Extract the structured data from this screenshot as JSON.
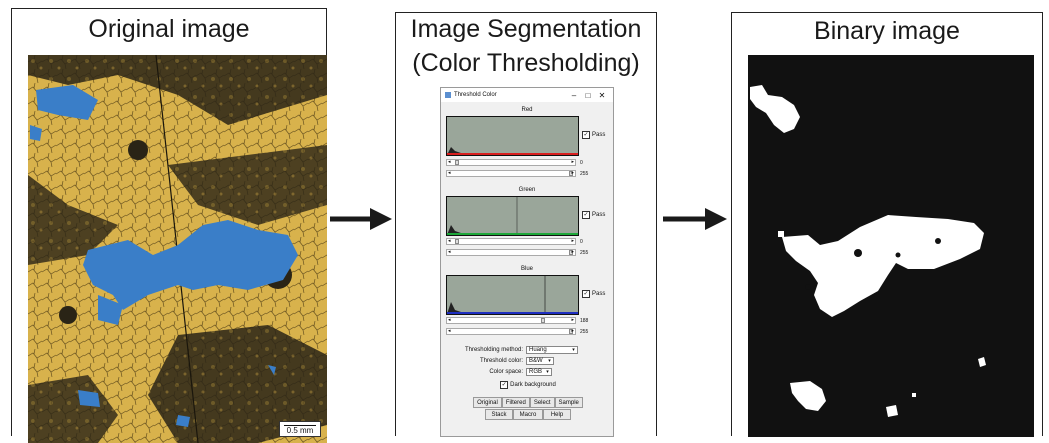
{
  "panels": {
    "original": {
      "title": "Original image",
      "scale_label": "0.5 mm"
    },
    "segmentation": {
      "title_line1": "Image Segmentation",
      "title_line2": "(Color Thresholding)"
    },
    "binary": {
      "title": "Binary image"
    }
  },
  "dialog": {
    "title": "Threshold Color",
    "window_buttons": [
      "–",
      "□",
      "✕"
    ],
    "channels": [
      {
        "name": "Red",
        "pass_label": "Pass",
        "min": "0",
        "max": "255",
        "color": "#d81e1e"
      },
      {
        "name": "Green",
        "pass_label": "Pass",
        "min": "0",
        "max": "255",
        "color": "#1ea83a"
      },
      {
        "name": "Blue",
        "pass_label": "Pass",
        "min": "188",
        "max": "255",
        "color": "#1e2ec0"
      }
    ],
    "method_label": "Thresholding method:",
    "method_value": "Huang",
    "color_label": "Threshold color:",
    "color_value": "B&W",
    "space_label": "Color space:",
    "space_value": "RGB",
    "dark_bg_label": "Dark background",
    "buttons_row1": [
      "Original",
      "Filtered",
      "Select",
      "Sample"
    ],
    "buttons_row2": [
      "Stack",
      "Macro",
      "Help"
    ]
  },
  "colors": {
    "background_fill": "#e0b850",
    "dark_fill": "#2a2416",
    "selection_blue": "#3a7ec8",
    "binary_black": "#111111",
    "binary_white": "#ffffff"
  },
  "icons": [
    "arrow-right-icon",
    "threshold-dialog-icon",
    "checkbox-icon"
  ]
}
